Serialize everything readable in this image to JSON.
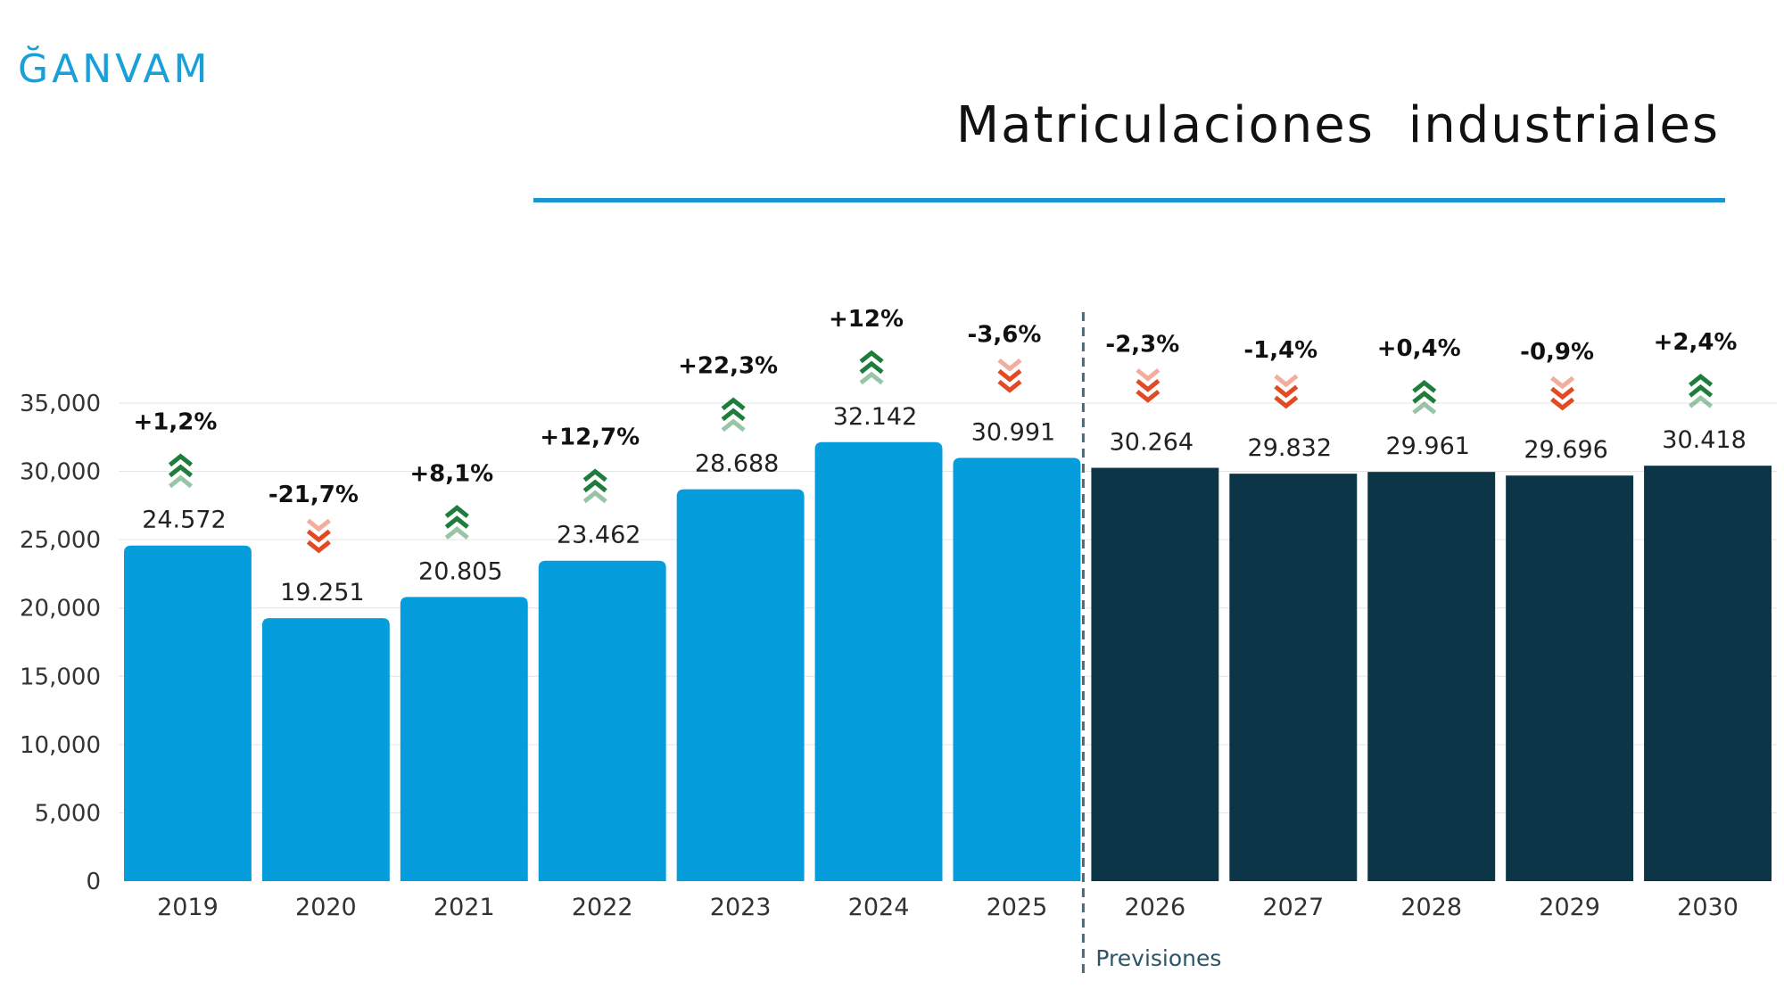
{
  "logo": {
    "text": "ĞANVAM"
  },
  "header": {
    "title": "Matriculaciones  industriales"
  },
  "colors": {
    "historic": "#069ddd",
    "forecast": "#0c3547",
    "up": "#1e7d3a",
    "down": "#e24a23",
    "accent": "#1a95d1"
  },
  "chart_data": {
    "type": "bar",
    "title": "Matriculaciones industriales",
    "xlabel": "",
    "ylabel": "",
    "ylim": [
      0,
      35000
    ],
    "yticks": [
      "0",
      "5,000",
      "10,000",
      "15,000",
      "20,000",
      "25,000",
      "30,000",
      "35,000"
    ],
    "ytick_values": [
      0,
      5000,
      10000,
      15000,
      20000,
      25000,
      30000,
      35000
    ],
    "categories": [
      "2019",
      "2020",
      "2021",
      "2022",
      "2023",
      "2024",
      "2025",
      "2026",
      "2027",
      "2028",
      "2029",
      "2030"
    ],
    "values": [
      24572,
      19251,
      20805,
      23462,
      28688,
      32142,
      30991,
      30264,
      29832,
      29961,
      29696,
      30418
    ],
    "value_labels": [
      "24.572",
      "19.251",
      "20.805",
      "23.462",
      "28.688",
      "32.142",
      "30.991",
      "30.264",
      "29.832",
      "29.961",
      "29.696",
      "30.418"
    ],
    "changes": [
      "+1,2%",
      "-21,7%",
      "+8,1%",
      "+12,7%",
      "+22,3%",
      "+12%",
      "-3,6%",
      "-2,3%",
      "-1,4%",
      "+0,4%",
      "-0,9%",
      "+2,4%"
    ],
    "trend": [
      "up",
      "down",
      "up",
      "up",
      "up",
      "up",
      "down",
      "down",
      "down",
      "up",
      "down",
      "up"
    ],
    "forecast_start_index": 7,
    "forecast_label": "Previsiones",
    "grid": true
  }
}
